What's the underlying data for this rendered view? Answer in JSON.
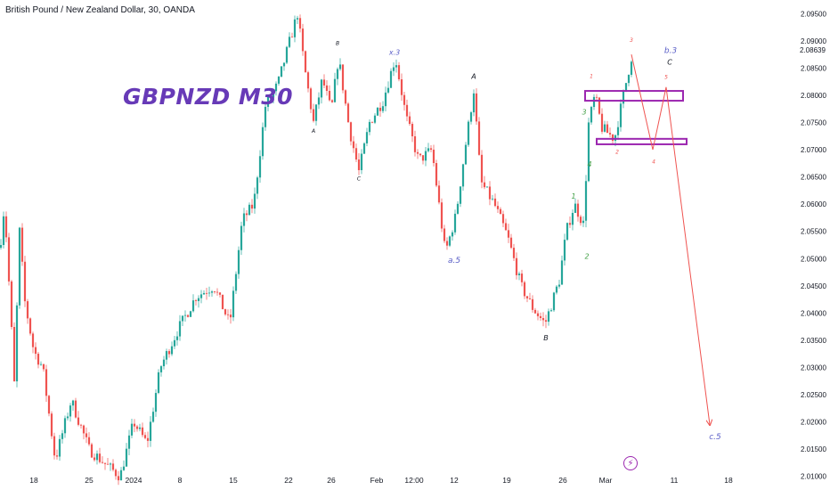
{
  "header": {
    "symbol": "British Pound / New Zealand Dollar, 30, OANDA"
  },
  "title": "GBPNZD M30",
  "last_price_label": "2.08639",
  "bolt_icon": "⚡",
  "colors": {
    "up": "#26a69a",
    "down": "#ef5350",
    "title": "#673ab7",
    "box": "#9c27b0",
    "wave_red": "#ef5350",
    "wave_green": "#43a047",
    "wave_blue": "#5b5fc7",
    "wave_black": "#131722"
  },
  "chart_data": {
    "type": "candlestick",
    "ylim": [
      2.0075,
      2.0975
    ],
    "y_ticks": [
      "2.01000",
      "2.01500",
      "2.02000",
      "2.02500",
      "2.03000",
      "2.03500",
      "2.04000",
      "2.04500",
      "2.05000",
      "2.05500",
      "2.06000",
      "2.06500",
      "2.07000",
      "2.07500",
      "2.08000",
      "2.08500",
      "2.09000",
      "2.09500"
    ],
    "x_ticks": [
      "18",
      "25",
      "2024",
      "8",
      "15",
      "22",
      "26",
      "Feb",
      "12:00",
      "12",
      "19",
      "26",
      "Mar",
      "11",
      "18"
    ],
    "price_path": [
      {
        "i": 0,
        "p": 2.052
      },
      {
        "i": 5,
        "p": 2.06
      },
      {
        "i": 12,
        "p": 2.04
      },
      {
        "i": 16,
        "p": 2.027
      },
      {
        "i": 22,
        "p": 2.055
      },
      {
        "i": 28,
        "p": 2.042
      },
      {
        "i": 38,
        "p": 2.033
      },
      {
        "i": 48,
        "p": 2.03
      },
      {
        "i": 62,
        "p": 2.013
      },
      {
        "i": 80,
        "p": 2.024
      },
      {
        "i": 100,
        "p": 2.015
      },
      {
        "i": 120,
        "p": 2.012
      },
      {
        "i": 135,
        "p": 2.01
      },
      {
        "i": 150,
        "p": 2.02
      },
      {
        "i": 165,
        "p": 2.016
      },
      {
        "i": 180,
        "p": 2.03
      },
      {
        "i": 200,
        "p": 2.037
      },
      {
        "i": 220,
        "p": 2.043
      },
      {
        "i": 240,
        "p": 2.045
      },
      {
        "i": 258,
        "p": 2.038
      },
      {
        "i": 272,
        "p": 2.057
      },
      {
        "i": 285,
        "p": 2.06
      },
      {
        "i": 298,
        "p": 2.078
      },
      {
        "i": 312,
        "p": 2.082
      },
      {
        "i": 322,
        "p": 2.088
      },
      {
        "i": 334,
        "p": 2.095
      },
      {
        "i": 342,
        "p": 2.085
      },
      {
        "i": 352,
        "p": 2.075
      },
      {
        "i": 362,
        "p": 2.083
      },
      {
        "i": 372,
        "p": 2.077
      },
      {
        "i": 380,
        "p": 2.087
      },
      {
        "i": 392,
        "p": 2.074
      },
      {
        "i": 403,
        "p": 2.066
      },
      {
        "i": 415,
        "p": 2.075
      },
      {
        "i": 430,
        "p": 2.079
      },
      {
        "i": 444,
        "p": 2.087
      },
      {
        "i": 456,
        "p": 2.076
      },
      {
        "i": 470,
        "p": 2.068
      },
      {
        "i": 485,
        "p": 2.07
      },
      {
        "i": 500,
        "p": 2.051
      },
      {
        "i": 512,
        "p": 2.058
      },
      {
        "i": 522,
        "p": 2.07
      },
      {
        "i": 532,
        "p": 2.081
      },
      {
        "i": 540,
        "p": 2.064
      },
      {
        "i": 555,
        "p": 2.06
      },
      {
        "i": 570,
        "p": 2.054
      },
      {
        "i": 585,
        "p": 2.045
      },
      {
        "i": 598,
        "p": 2.041
      },
      {
        "i": 612,
        "p": 2.038
      },
      {
        "i": 628,
        "p": 2.046
      },
      {
        "i": 636,
        "p": 2.055
      },
      {
        "i": 645,
        "p": 2.06
      },
      {
        "i": 656,
        "p": 2.056
      },
      {
        "i": 660,
        "p": 2.074
      },
      {
        "i": 668,
        "p": 2.08
      },
      {
        "i": 676,
        "p": 2.074
      },
      {
        "i": 690,
        "p": 2.072
      },
      {
        "i": 700,
        "p": 2.08
      },
      {
        "i": 709,
        "p": 2.087
      }
    ],
    "wave_projection": [
      {
        "i": 709,
        "p": 2.0875
      },
      {
        "i": 733,
        "p": 2.07
      },
      {
        "i": 748,
        "p": 2.0815
      },
      {
        "i": 797,
        "p": 2.0195
      }
    ],
    "zones": [
      {
        "i_from": 657,
        "i_to": 767,
        "p_from": 2.079,
        "p_to": 2.0808
      },
      {
        "i_from": 670,
        "i_to": 771,
        "p_from": 2.071,
        "p_to": 2.072
      }
    ],
    "wave_labels": [
      {
        "text": "B",
        "i": 379,
        "p": 2.0892,
        "color": "black",
        "size": 6
      },
      {
        "text": "A",
        "i": 352,
        "p": 2.0731,
        "color": "black",
        "size": 6
      },
      {
        "text": "C",
        "i": 403,
        "p": 2.0644,
        "color": "black",
        "size": 6
      },
      {
        "text": "x.3",
        "i": 443,
        "p": 2.0874,
        "color": "blue",
        "size": 8
      },
      {
        "text": "A",
        "i": 532,
        "p": 2.083,
        "color": "black",
        "size": 8
      },
      {
        "text": "a.5",
        "i": 510,
        "p": 2.0492,
        "color": "blue",
        "size": 9
      },
      {
        "text": "B",
        "i": 613,
        "p": 2.035,
        "color": "black",
        "size": 8
      },
      {
        "text": "1",
        "i": 644,
        "p": 2.061,
        "color": "green",
        "size": 8
      },
      {
        "text": "2",
        "i": 659,
        "p": 2.05,
        "color": "green",
        "size": 8
      },
      {
        "text": "3",
        "i": 656,
        "p": 2.0765,
        "color": "green",
        "size": 8
      },
      {
        "text": "4",
        "i": 662,
        "p": 2.0669,
        "color": "green",
        "size": 8
      },
      {
        "text": "1",
        "i": 664,
        "p": 2.0832,
        "color": "red",
        "size": 6
      },
      {
        "text": "2",
        "i": 693,
        "p": 2.0693,
        "color": "red",
        "size": 6
      },
      {
        "text": "3",
        "i": 709,
        "p": 2.0898,
        "color": "red",
        "size": 6
      },
      {
        "text": "4",
        "i": 734,
        "p": 2.0675,
        "color": "red",
        "size": 6
      },
      {
        "text": "5",
        "i": 748,
        "p": 2.083,
        "color": "red",
        "size": 6
      },
      {
        "text": "b.3",
        "i": 753,
        "p": 2.0878,
        "color": "blue",
        "size": 9
      },
      {
        "text": "C",
        "i": 752,
        "p": 2.0856,
        "color": "black",
        "size": 8
      },
      {
        "text": "c.5",
        "i": 803,
        "p": 2.0168,
        "color": "blue",
        "size": 9
      }
    ]
  }
}
